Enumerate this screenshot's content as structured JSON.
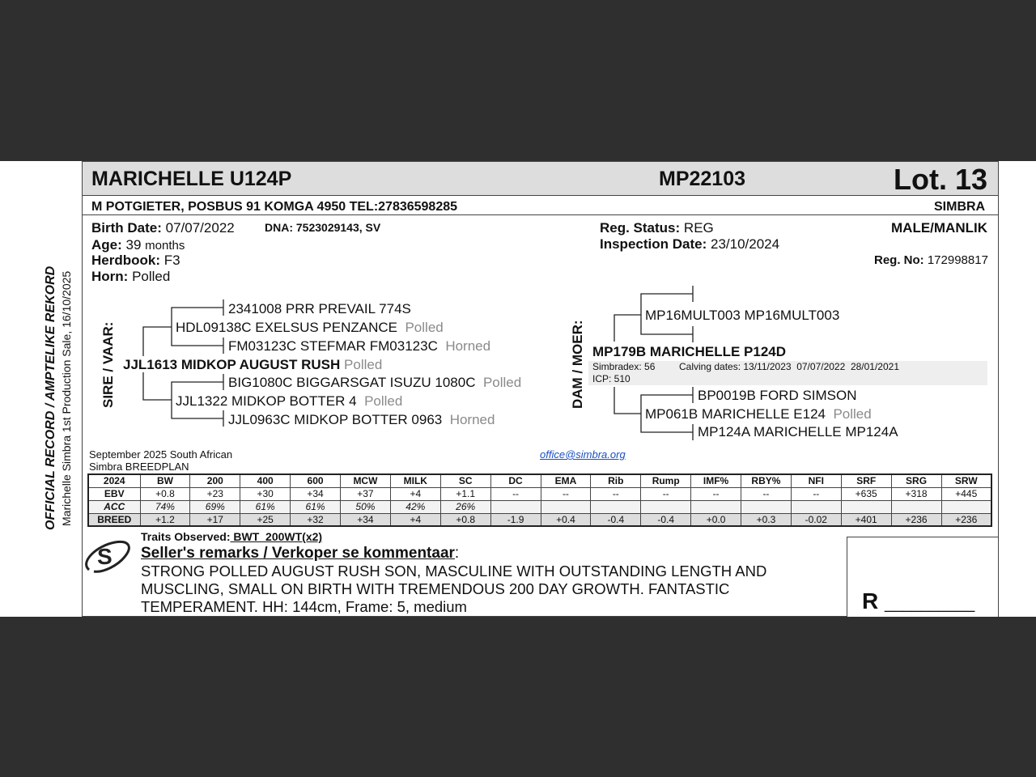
{
  "header": {
    "animal_name": "MARICHELLE U124P",
    "id": "MP22103",
    "lot": "Lot. 13"
  },
  "owner": {
    "address": "M POTGIETER, POSBUS 91 KOMGA 4950 TEL:27836598285",
    "breed": "SIMBRA"
  },
  "details": {
    "birth_date_label": "Birth Date:",
    "birth_date": "07/07/2022",
    "dna": "DNA: 7523029143, SV",
    "age_label": "Age:",
    "age_value": "39",
    "age_unit": "months",
    "herdbook_label": "Herdbook:",
    "herdbook": "F3",
    "horn_label": "Horn:",
    "horn": "Polled",
    "reg_status_label": "Reg. Status:",
    "reg_status": "REG",
    "inspection_label": "Inspection Date:",
    "inspection_date": "23/10/2024",
    "sex": "MALE/MANLIK",
    "reg_no_label": "Reg. No:",
    "reg_no": "172998817"
  },
  "side_text": {
    "record": "OFFICIAL RECORD / AMPTELIKE REKORD",
    "sale": "Marichelle Simbra 1st Production Sale, 16/10/2025"
  },
  "sire": {
    "label": "SIRE / VAAR:",
    "name": "JJL1613 MIDKOP AUGUST RUSH",
    "horn": "Polled",
    "sire": {
      "name": "HDL09138C EXELSUS PENZANCE",
      "horn": "Polled",
      "sire": "2341008 PRR PREVAIL 774S",
      "dam": "FM03123C STEFMAR FM03123C",
      "dam_horn": "Horned"
    },
    "dam": {
      "name": "JJL1322 MIDKOP BOTTER 4",
      "horn": "Polled",
      "sire": "BIG1080C BIGGARSGAT ISUZU 1080C",
      "sire_horn": "Polled",
      "dam": "JJL0963C MIDKOP BOTTER 0963",
      "dam_horn": "Horned"
    }
  },
  "dam": {
    "label": "DAM / MOER:",
    "name": "MP179B MARICHELLE P124D",
    "simbradex": "Simbradex: 56",
    "calving": "Calving dates: 13/11/2023  07/07/2022  28/01/2021",
    "icp": "ICP: 510",
    "sire": {
      "name": "MP16MULT003 MP16MULT003"
    },
    "dam": {
      "name": "MP061B MARICHELLE E124",
      "horn": "Polled",
      "sire": "BP0019B FORD SIMSON",
      "dam": "MP124A MARICHELLE MP124A"
    }
  },
  "breedplan": {
    "title_line1": "September 2025 South African",
    "title_line2": "Simbra BREEDPLAN",
    "email": "office@simbra.org",
    "headers": [
      "2024",
      "BW",
      "200",
      "400",
      "600",
      "MCW",
      "MILK",
      "SC",
      "DC",
      "EMA",
      "Rib",
      "Rump",
      "IMF%",
      "RBY%",
      "NFI",
      "SRF",
      "SRG",
      "SRW"
    ],
    "rows": [
      [
        "EBV",
        "+0.8",
        "+23",
        "+30",
        "+34",
        "+37",
        "+4",
        "+1.1",
        "--",
        "--",
        "--",
        "--",
        "--",
        "--",
        "--",
        "+635",
        "+318",
        "+445"
      ],
      [
        "ACC",
        "74%",
        "69%",
        "61%",
        "61%",
        "50%",
        "42%",
        "26%",
        "",
        "",
        "",
        "",
        "",
        "",
        "",
        "",
        "",
        ""
      ],
      [
        "BREED",
        "+1.2",
        "+17",
        "+25",
        "+32",
        "+34",
        "+4",
        "+0.8",
        "-1.9",
        "+0.4",
        "-0.4",
        "-0.4",
        "+0.0",
        "+0.3",
        "-0.02",
        "+401",
        "+236",
        "+236"
      ]
    ]
  },
  "remarks": {
    "traits_label": "Traits Observed:",
    "traits": " BWT  200WT(x2)",
    "title": "Seller's remarks / Verkoper se kommentaar",
    "colon": ":",
    "lines": [
      "STRONG POLLED AUGUST RUSH SON, MASCULINE WITH OUTSTANDING LENGTH AND",
      "MUSCLING, SMALL ON BIRTH WITH TREMENDOUS 200 DAY GROWTH. FANTASTIC",
      "TEMPERAMENT. HH: 144cm, Frame: 5, medium"
    ]
  },
  "price_box": {
    "currency": "R",
    "line": "__________"
  },
  "logo": {
    "text": "S"
  }
}
